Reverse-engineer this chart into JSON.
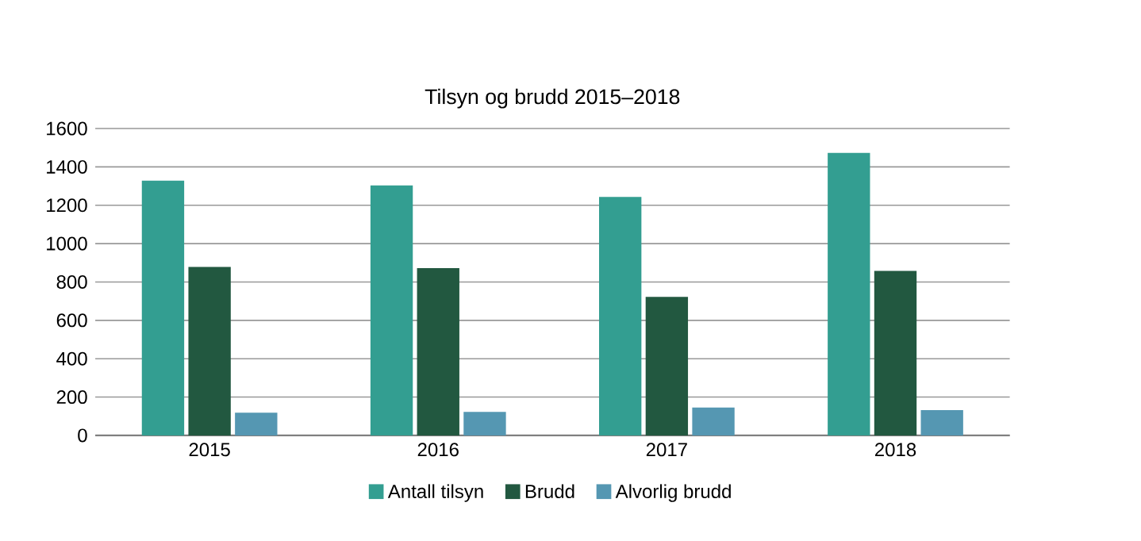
{
  "chart_data": {
    "type": "bar",
    "title": "Tilsyn og brudd 2015–2018",
    "categories": [
      "2015",
      "2016",
      "2017",
      "2018"
    ],
    "series": [
      {
        "name": "Antall tilsyn",
        "color": "#339e91",
        "values": [
          1328,
          1303,
          1244,
          1473
        ]
      },
      {
        "name": "Brudd",
        "color": "#225840",
        "values": [
          878,
          872,
          722,
          858
        ]
      },
      {
        "name": "Alvorlig brudd",
        "color": "#5597b2",
        "values": [
          118,
          123,
          145,
          132
        ]
      }
    ],
    "ylim": [
      0,
      1600
    ],
    "yticks": [
      0,
      200,
      400,
      600,
      800,
      1000,
      1200,
      1400,
      1600
    ],
    "grid": "y",
    "legend": "bottom"
  }
}
